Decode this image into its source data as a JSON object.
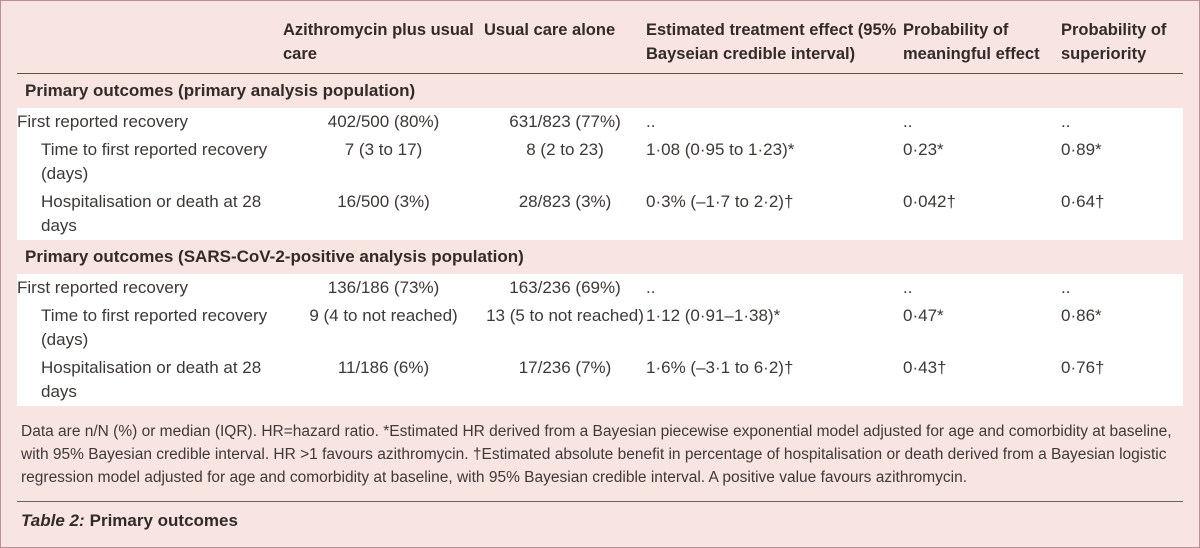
{
  "figure": {
    "columns": [
      "",
      "Azithromycin plus usual care",
      "Usual care alone",
      "Estimated treatment effect (95% Bayseian credible interval)",
      "Probability of meaningful effect",
      "Probability of superiority"
    ],
    "sections": [
      {
        "title": "Primary outcomes (primary analysis population)",
        "rows": [
          {
            "label": "First reported recovery",
            "indent": false,
            "values": [
              "402/500 (80%)",
              "631/823 (77%)",
              "..",
              "..",
              ".."
            ]
          },
          {
            "label": "Time to first reported recovery (days)",
            "indent": true,
            "values": [
              "7 (3 to 17)",
              "8 (2 to 23)",
              "1·08 (0·95 to 1·23)*",
              "0·23*",
              "0·89*"
            ]
          },
          {
            "label": "Hospitalisation or death at 28 days",
            "indent": true,
            "values": [
              "16/500 (3%)",
              "28/823 (3%)",
              "0·3% (–1·7 to 2·2)†",
              "0·042†",
              "0·64†"
            ]
          }
        ]
      },
      {
        "title": "Primary outcomes (SARS-CoV-2-positive analysis population)",
        "rows": [
          {
            "label": "First reported recovery",
            "indent": false,
            "values": [
              "136/186 (73%)",
              "163/236 (69%)",
              "..",
              "..",
              ".."
            ]
          },
          {
            "label": "Time to first reported recovery (days)",
            "indent": true,
            "values": [
              "9 (4 to not reached)",
              "13 (5 to not reached)",
              "1·12 (0·91–1·38)*",
              "0·47*",
              "0·86*"
            ]
          },
          {
            "label": "Hospitalisation or death at 28 days",
            "indent": true,
            "values": [
              "11/186 (6%)",
              "17/236 (7%)",
              "1·6% (–3·1 to 6·2)†",
              "0·43†",
              "0·76†"
            ]
          }
        ]
      }
    ],
    "footnote": "Data are n/N (%) or median (IQR). HR=hazard ratio. *Estimated HR derived from a Bayesian piecewise exponential model adjusted for age and comorbidity at baseline, with 95% Bayesian credible interval. HR >1 favours azithromycin. †Estimated absolute benefit in percentage of hospitalisation or death derived from a Bayesian logistic regression model adjusted for age and comorbidity at baseline, with 95% Bayesian credible interval. A positive value favours azithromycin.",
    "caption_label": "Table 2:",
    "caption_text": "Primary outcomes",
    "colors": {
      "background": "#f8e4e1",
      "row_background": "#ffffff",
      "outer_border": "#bb9092",
      "header_rule": "#57514d",
      "heading_text": "#322b27",
      "body_text": "#3d3835"
    }
  }
}
